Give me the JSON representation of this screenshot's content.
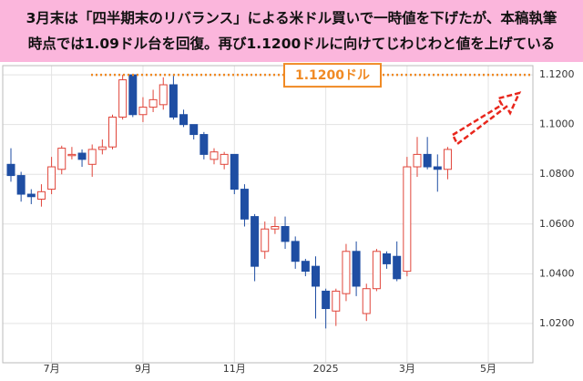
{
  "chart_data": {
    "type": "candlestick",
    "title_lines": [
      "3月末は「四半期末のリバランス」による米ドル買いで一時値を下げたが、本稿執筆",
      "時点では1.09ドル台を回復。再び1.1200ドルに向けてじわじわと値を上げている"
    ],
    "categories": [
      null,
      null,
      null,
      null,
      "7月",
      null,
      null,
      null,
      null,
      null,
      null,
      null,
      null,
      "9月",
      null,
      null,
      null,
      null,
      null,
      null,
      null,
      null,
      "11月",
      null,
      null,
      null,
      null,
      null,
      null,
      null,
      null,
      "2025",
      null,
      null,
      null,
      null,
      null,
      null,
      null,
      "3月",
      null,
      null,
      null,
      null,
      null,
      null,
      null,
      "5月"
    ],
    "open": [
      1.084,
      1.0795,
      1.072,
      1.07,
      1.074,
      1.082,
      1.0875,
      1.0885,
      1.084,
      1.09,
      1.091,
      1.103,
      1.12,
      1.104,
      1.107,
      1.108,
      1.116,
      1.104,
      1.1,
      1.096,
      1.086,
      1.084,
      1.088,
      1.074,
      1.063,
      1.049,
      1.058,
      1.059,
      1.053,
      1.045,
      1.043,
      1.033,
      1.025,
      1.032,
      1.049,
      1.024,
      1.034,
      1.048,
      1.047,
      1.041,
      1.083,
      1.088,
      1.083,
      1.082,
      null,
      null,
      null,
      null
    ],
    "high": [
      1.0905,
      1.081,
      1.074,
      1.076,
      1.087,
      1.0915,
      1.091,
      1.09,
      1.092,
      1.094,
      1.104,
      1.12,
      1.12,
      1.111,
      1.114,
      1.119,
      1.12,
      1.106,
      1.1,
      1.097,
      1.0905,
      1.089,
      1.088,
      1.076,
      1.064,
      1.061,
      1.063,
      1.063,
      1.055,
      1.046,
      1.047,
      1.034,
      1.034,
      1.052,
      1.053,
      1.036,
      1.05,
      1.049,
      1.053,
      1.087,
      1.095,
      1.095,
      1.088,
      1.091,
      null,
      null,
      null,
      null
    ],
    "low": [
      1.077,
      1.069,
      1.068,
      1.067,
      1.072,
      1.08,
      1.086,
      1.083,
      1.079,
      1.088,
      1.09,
      1.102,
      1.103,
      1.101,
      1.105,
      1.106,
      1.102,
      1.099,
      1.094,
      1.086,
      1.084,
      1.082,
      1.072,
      1.059,
      1.037,
      1.046,
      1.056,
      1.05,
      1.042,
      1.039,
      1.022,
      1.018,
      1.019,
      1.029,
      1.031,
      1.021,
      1.033,
      1.042,
      1.037,
      1.039,
      1.079,
      1.082,
      1.073,
      1.078,
      null,
      null,
      null,
      null
    ],
    "close": [
      1.0795,
      1.072,
      1.071,
      1.073,
      1.083,
      1.0905,
      1.088,
      1.086,
      1.09,
      1.091,
      1.103,
      1.118,
      1.104,
      1.107,
      1.11,
      1.116,
      1.103,
      1.1,
      1.096,
      1.088,
      1.089,
      1.088,
      1.074,
      1.062,
      1.043,
      1.058,
      1.059,
      1.053,
      1.045,
      1.041,
      1.035,
      1.026,
      1.033,
      1.049,
      1.035,
      1.034,
      1.049,
      1.044,
      1.038,
      1.083,
      1.088,
      1.083,
      1.082,
      1.09,
      null,
      null,
      null,
      null
    ],
    "up_color": "#e0453a",
    "down_color": "#1f4ea3",
    "ylim": [
      1.0042,
      1.1237
    ],
    "yticks": [
      {
        "value": 1.02,
        "label": "1.0200"
      },
      {
        "value": 1.04,
        "label": "1.0400"
      },
      {
        "value": 1.06,
        "label": "1.0600"
      },
      {
        "value": 1.08,
        "label": "1.0800"
      },
      {
        "value": 1.1,
        "label": "1.1000"
      },
      {
        "value": 1.12,
        "label": "1.1200"
      }
    ],
    "grid": true,
    "reference_line": {
      "value": 1.12,
      "label": "1.1200ドル",
      "color": "#f08a24"
    }
  }
}
